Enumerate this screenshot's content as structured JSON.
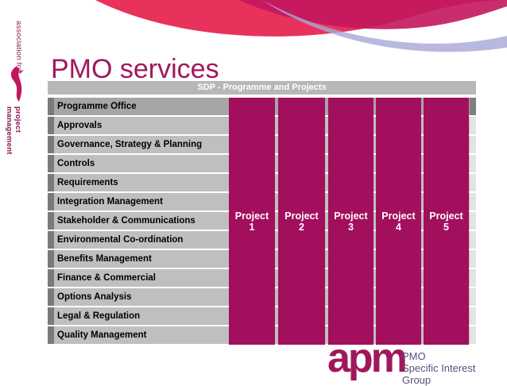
{
  "colors": {
    "accent": "#a20f5d",
    "header_gray": "#b7b7b7",
    "row_gray": "#bfbfbf",
    "brand_text": "#5b4e7e"
  },
  "side_brand": {
    "line1": "association for",
    "line2": "project management"
  },
  "title": "PMO services",
  "header": "SDP - Programme and Projects",
  "rows": [
    "Programme Office",
    "Approvals",
    "Governance, Strategy & Planning",
    "Controls",
    "Requirements",
    "Integration Management",
    "Stakeholder & Communications",
    "Environmental Co-ordination",
    "Benefits Management",
    "Finance & Commercial",
    "Options Analysis",
    "Legal & Regulation",
    "Quality Management"
  ],
  "projects": [
    "Project\n1",
    "Project\n2",
    "Project\n3",
    "Project\n4",
    "Project\n5"
  ],
  "logo": {
    "mark": "apm",
    "line1": "PMO",
    "line2": "Specific Interest Group"
  }
}
